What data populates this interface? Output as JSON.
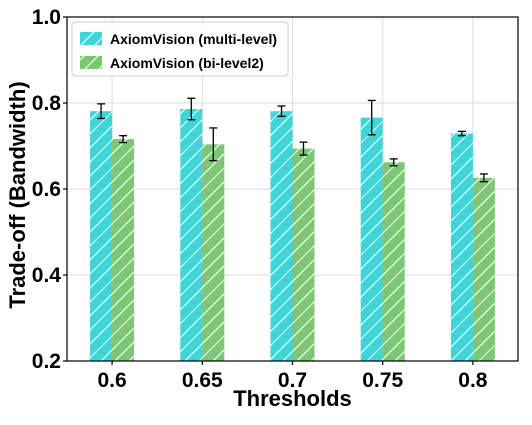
{
  "chart_data": {
    "type": "bar",
    "categories": [
      "0.6",
      "0.65",
      "0.7",
      "0.75",
      "0.8"
    ],
    "series": [
      {
        "name": "AxiomVision (multi-level)",
        "color": "#3fd4d8",
        "values": [
          0.781,
          0.786,
          0.781,
          0.766,
          0.729
        ],
        "errors": [
          0.017,
          0.025,
          0.012,
          0.04,
          0.005
        ]
      },
      {
        "name": "AxiomVision (bi-level2)",
        "color": "#7dc675",
        "values": [
          0.716,
          0.704,
          0.694,
          0.662,
          0.626
        ],
        "errors": [
          0.008,
          0.038,
          0.015,
          0.008,
          0.009
        ]
      }
    ],
    "xlabel": "Thresholds",
    "ylabel": "Trade-off (Bandwidth)",
    "ylim": [
      0.2,
      1.0
    ],
    "yticks": [
      "0.2",
      "0.4",
      "0.6",
      "0.8",
      "1.0"
    ],
    "grid": true,
    "legend_position": "top-left",
    "hatch": "diagonal"
  }
}
